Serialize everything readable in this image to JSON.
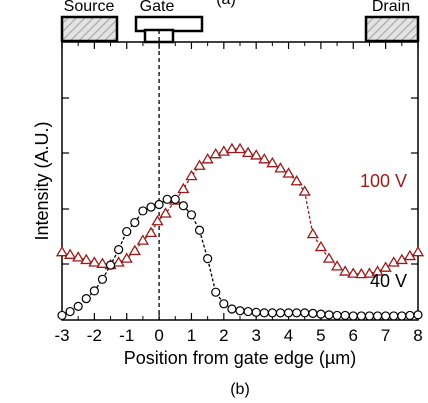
{
  "top_label": "(a)",
  "caption": "(b)",
  "device": {
    "source_label": "Source",
    "gate_label": "Gate",
    "drain_label": "Drain"
  },
  "chart_data": {
    "type": "scatter",
    "xlabel": "Position from gate edge (µm)",
    "ylabel": "Intensity (A.U.)",
    "xlim": [
      -3,
      8
    ],
    "xticks": [
      "-3",
      "-2",
      "-1",
      "0",
      "1",
      "2",
      "3",
      "4",
      "5",
      "6",
      "7",
      "8"
    ],
    "ylim": [
      0,
      10
    ],
    "y_tick_labels": false,
    "grid": false,
    "vertical_reference_line_at_x": 0,
    "series": [
      {
        "name": "100 V",
        "label": "100 V",
        "marker": "triangle-open",
        "color": "#9b1b1b",
        "line": "dashed",
        "points": [
          [
            -3.0,
            2.55
          ],
          [
            -2.75,
            2.45
          ],
          [
            -2.5,
            2.35
          ],
          [
            -2.25,
            2.25
          ],
          [
            -2.0,
            2.15
          ],
          [
            -1.75,
            2.1
          ],
          [
            -1.5,
            2.05
          ],
          [
            -1.25,
            2.15
          ],
          [
            -1.0,
            2.3
          ],
          [
            -0.75,
            2.6
          ],
          [
            -0.5,
            3.0
          ],
          [
            -0.25,
            3.3
          ],
          [
            -0.05,
            3.75
          ],
          [
            0.2,
            4.05
          ],
          [
            0.5,
            4.55
          ],
          [
            0.75,
            5.0
          ],
          [
            1.0,
            5.5
          ],
          [
            1.25,
            5.9
          ],
          [
            1.5,
            6.15
          ],
          [
            1.75,
            6.35
          ],
          [
            2.0,
            6.45
          ],
          [
            2.25,
            6.55
          ],
          [
            2.5,
            6.55
          ],
          [
            2.75,
            6.4
          ],
          [
            3.0,
            6.3
          ],
          [
            3.25,
            6.15
          ],
          [
            3.5,
            6.0
          ],
          [
            3.75,
            5.8
          ],
          [
            4.0,
            5.6
          ],
          [
            4.25,
            5.3
          ],
          [
            4.5,
            4.9
          ],
          [
            4.75,
            3.25
          ],
          [
            5.0,
            2.75
          ],
          [
            5.25,
            2.3
          ],
          [
            5.5,
            2.0
          ],
          [
            5.75,
            1.8
          ],
          [
            6.0,
            1.72
          ],
          [
            6.25,
            1.7
          ],
          [
            6.5,
            1.72
          ],
          [
            6.75,
            1.8
          ],
          [
            7.0,
            1.95
          ],
          [
            7.25,
            2.15
          ],
          [
            7.5,
            2.25
          ],
          [
            7.75,
            2.4
          ],
          [
            8.0,
            2.55
          ]
        ]
      },
      {
        "name": "40 V",
        "label": "40 V",
        "marker": "circle-open",
        "color": "#000000",
        "line": "dashed",
        "points": [
          [
            -3.0,
            0.1
          ],
          [
            -2.75,
            0.25
          ],
          [
            -2.5,
            0.45
          ],
          [
            -2.25,
            0.75
          ],
          [
            -2.0,
            1.05
          ],
          [
            -1.75,
            1.5
          ],
          [
            -1.5,
            2.05
          ],
          [
            -1.25,
            2.65
          ],
          [
            -1.0,
            3.35
          ],
          [
            -0.75,
            3.7
          ],
          [
            -0.5,
            4.15
          ],
          [
            -0.25,
            4.3
          ],
          [
            0.0,
            4.4
          ],
          [
            0.25,
            4.6
          ],
          [
            0.5,
            4.6
          ],
          [
            0.75,
            4.35
          ],
          [
            1.0,
            4.0
          ],
          [
            1.25,
            3.4
          ],
          [
            1.5,
            2.3
          ],
          [
            1.75,
            1.0
          ],
          [
            2.0,
            0.55
          ],
          [
            2.25,
            0.35
          ],
          [
            2.5,
            0.28
          ],
          [
            2.75,
            0.25
          ],
          [
            3.0,
            0.22
          ],
          [
            3.25,
            0.2
          ],
          [
            3.5,
            0.2
          ],
          [
            3.75,
            0.2
          ],
          [
            4.0,
            0.2
          ],
          [
            4.25,
            0.2
          ],
          [
            4.5,
            0.2
          ],
          [
            4.75,
            0.18
          ],
          [
            5.0,
            0.15
          ],
          [
            5.25,
            0.12
          ],
          [
            5.5,
            0.1
          ],
          [
            5.75,
            0.1
          ],
          [
            6.0,
            0.08
          ],
          [
            6.25,
            0.08
          ],
          [
            6.5,
            0.08
          ],
          [
            6.75,
            0.08
          ],
          [
            7.0,
            0.08
          ],
          [
            7.25,
            0.08
          ],
          [
            7.5,
            0.08
          ],
          [
            7.75,
            0.1
          ],
          [
            8.0,
            0.12
          ]
        ]
      }
    ]
  }
}
